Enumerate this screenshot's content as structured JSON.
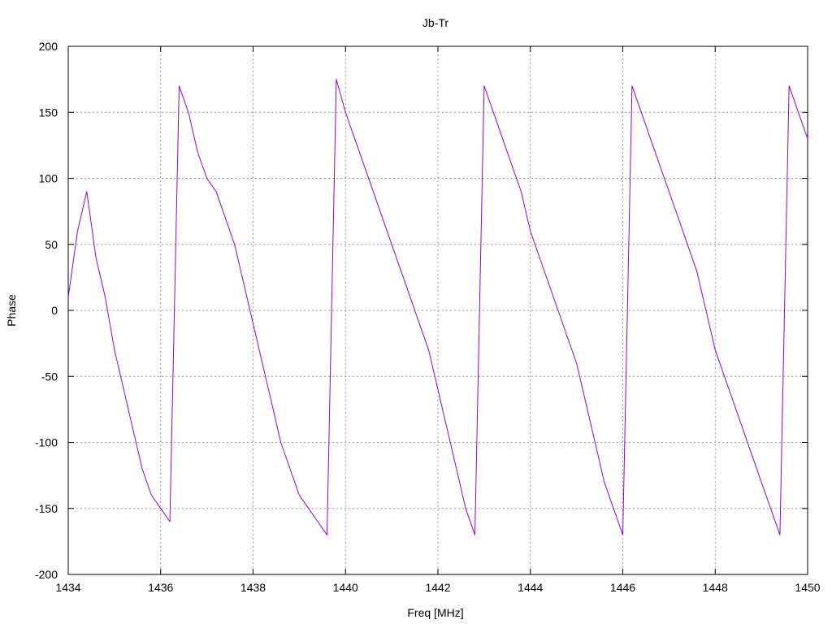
{
  "chart_data": {
    "type": "line",
    "title": "Jb-Tr",
    "xlabel": "Freq [MHz]",
    "ylabel": "Phase",
    "xlim": [
      1434,
      1450
    ],
    "ylim": [
      -200,
      200
    ],
    "x_ticks": [
      1434,
      1436,
      1438,
      1440,
      1442,
      1444,
      1446,
      1448,
      1450
    ],
    "y_ticks": [
      -200,
      -150,
      -100,
      -50,
      0,
      50,
      100,
      150,
      200
    ],
    "grid": true,
    "legend": "none",
    "series": [
      {
        "color": "#9400d3",
        "x": [
          1434,
          1434.2,
          1434.4,
          1434.6,
          1434.8,
          1435,
          1435.2,
          1435.4,
          1435.6,
          1435.8,
          1436,
          1436.2,
          1436.4,
          1436.6,
          1436.8,
          1437,
          1437.2,
          1437.4,
          1437.6,
          1437.8,
          1438,
          1438.2,
          1438.4,
          1438.6,
          1438.8,
          1439,
          1439.2,
          1439.4,
          1439.6,
          1439.8,
          1440,
          1440.2,
          1440.4,
          1440.6,
          1440.8,
          1441,
          1441.2,
          1441.4,
          1441.6,
          1441.8,
          1442,
          1442.2,
          1442.4,
          1442.6,
          1442.8,
          1443,
          1443.2,
          1443.4,
          1443.6,
          1443.8,
          1444,
          1444.2,
          1444.4,
          1444.6,
          1444.8,
          1445,
          1445.2,
          1445.4,
          1445.6,
          1445.8,
          1446,
          1446.2,
          1446.4,
          1446.6,
          1446.8,
          1447,
          1447.2,
          1447.4,
          1447.6,
          1447.8,
          1448,
          1448.2,
          1448.4,
          1448.6,
          1448.8,
          1449,
          1449.2,
          1449.4,
          1449.6,
          1449.8,
          1450
        ],
        "y": [
          10,
          60,
          90,
          40,
          10,
          -30,
          -60,
          -90,
          -120,
          -140,
          -150,
          -160,
          170,
          150,
          120,
          100,
          90,
          70,
          50,
          20,
          -10,
          -40,
          -70,
          -100,
          -120,
          -140,
          -150,
          -160,
          -170,
          175,
          150,
          130,
          110,
          90,
          70,
          50,
          30,
          10,
          -10,
          -30,
          -60,
          -90,
          -120,
          -150,
          -170,
          170,
          150,
          130,
          110,
          90,
          60,
          40,
          20,
          0,
          -20,
          -40,
          -70,
          -100,
          -130,
          -150,
          -170,
          170,
          150,
          130,
          110,
          90,
          70,
          50,
          30,
          0,
          -30,
          -50,
          -70,
          -90,
          -110,
          -130,
          -150,
          -170,
          170,
          150,
          130
        ]
      }
    ]
  }
}
